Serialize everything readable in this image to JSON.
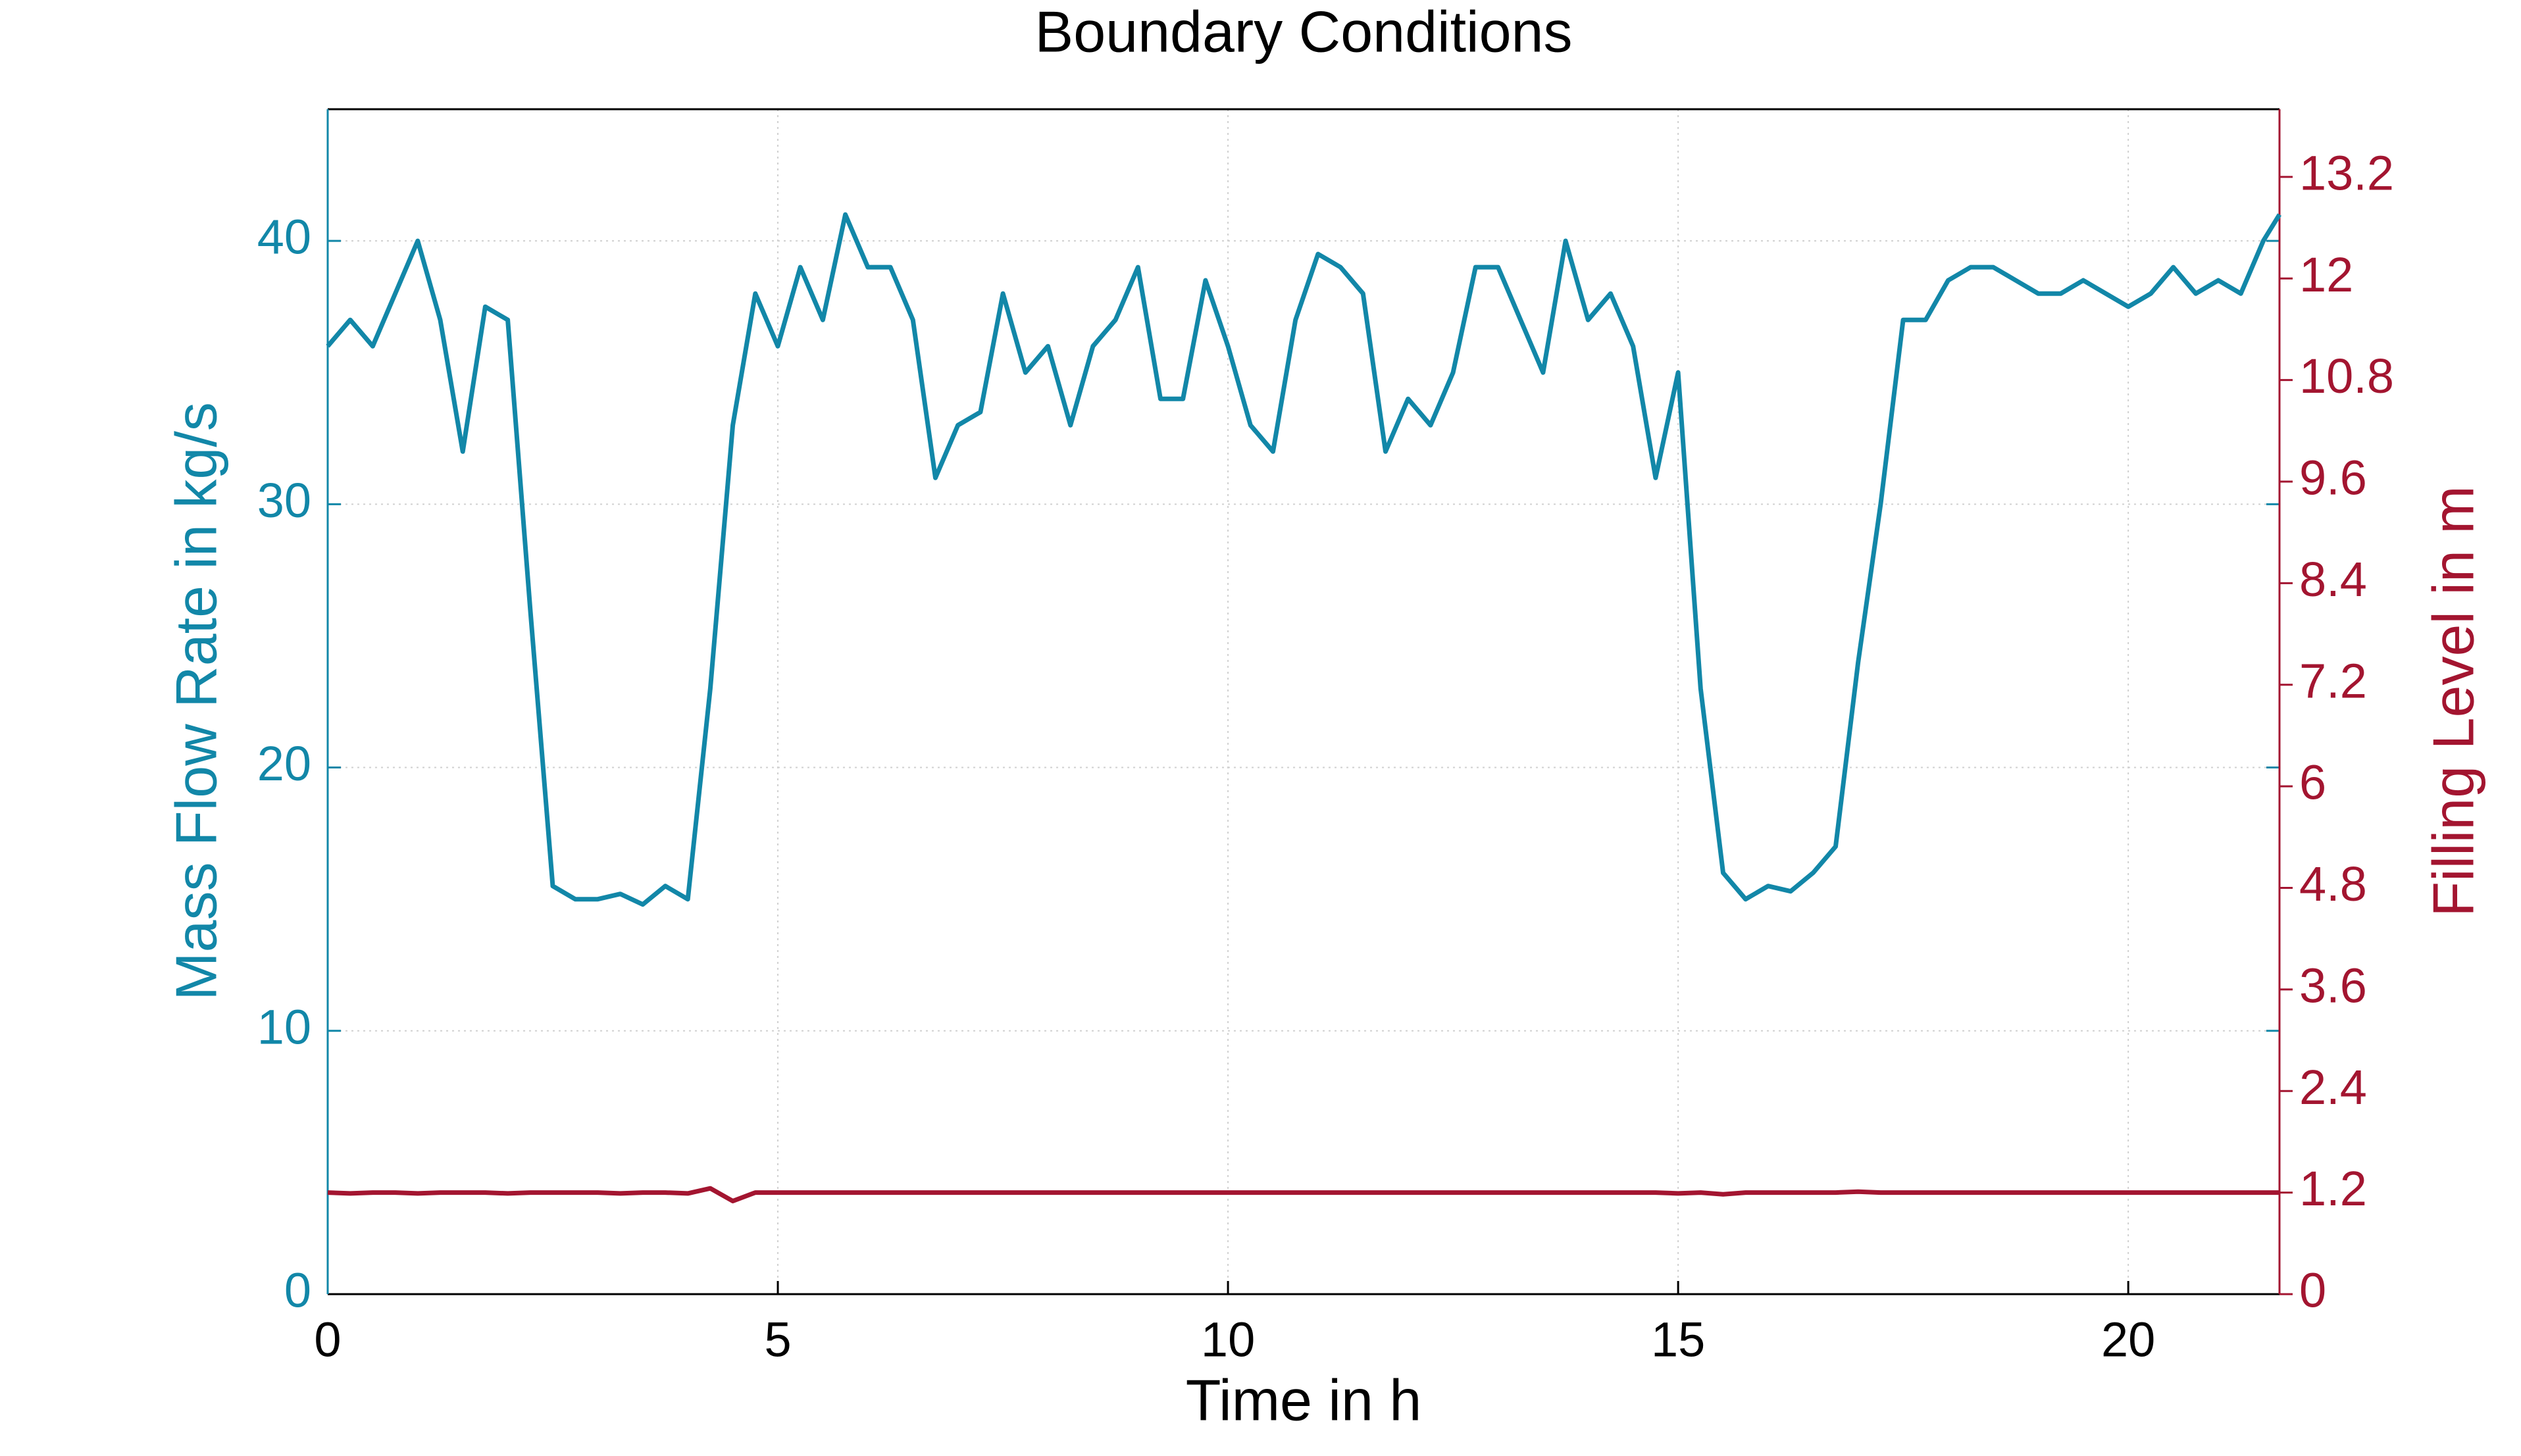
{
  "chart_data": {
    "type": "line",
    "title": "Boundary Conditions",
    "x_label": "Time in h",
    "y_label": "Mass Flow Rate in kg/s",
    "y2_label": "Filling Level in m",
    "x": [
      0,
      0.25,
      0.5,
      0.75,
      1,
      1.25,
      1.5,
      1.75,
      2,
      2.25,
      2.5,
      2.75,
      3,
      3.25,
      3.5,
      3.75,
      4,
      4.25,
      4.5,
      4.75,
      5,
      5.25,
      5.5,
      5.75,
      6,
      6.25,
      6.5,
      6.75,
      7,
      7.25,
      7.5,
      7.75,
      8,
      8.25,
      8.5,
      8.75,
      9,
      9.25,
      9.5,
      9.75,
      10,
      10.25,
      10.5,
      10.75,
      11,
      11.25,
      11.5,
      11.75,
      12,
      12.25,
      12.5,
      12.75,
      13,
      13.25,
      13.5,
      13.75,
      14,
      14.25,
      14.5,
      14.75,
      15,
      15.25,
      15.5,
      15.75,
      16,
      16.25,
      16.5,
      16.75,
      17,
      17.25,
      17.5,
      17.75,
      18,
      18.25,
      18.5,
      18.75,
      19,
      19.25,
      19.5,
      19.75,
      20,
      20.25,
      20.5,
      20.75,
      21,
      21.25,
      21.5,
      21.68
    ],
    "series": [
      {
        "name": "Mass Flow Rate",
        "color": "#1287a8",
        "axis": "y",
        "values": [
          36,
          37,
          36,
          38,
          40,
          37,
          32,
          37.5,
          37,
          26,
          15.5,
          15,
          15,
          15.2,
          14.8,
          15.5,
          15,
          23,
          33,
          38,
          36,
          39,
          37,
          41,
          39,
          39,
          37,
          31,
          33,
          33.5,
          38,
          35,
          36,
          33,
          36,
          37,
          39,
          34,
          34,
          38.5,
          36,
          33,
          32,
          37,
          39.5,
          39,
          38,
          32,
          34,
          33,
          35,
          39,
          39,
          37,
          35,
          40,
          37,
          38,
          36,
          31,
          35,
          23,
          16,
          15,
          15.5,
          15.3,
          16,
          17,
          24,
          30,
          37,
          37,
          38.5,
          39,
          39,
          38.5,
          38,
          38,
          38.5,
          38,
          37.5,
          38,
          39,
          38,
          38.5,
          38,
          40,
          41
        ]
      },
      {
        "name": "Filling Level",
        "color": "#a31530",
        "axis": "y2",
        "values": [
          1.2,
          1.19,
          1.2,
          1.2,
          1.19,
          1.2,
          1.2,
          1.2,
          1.19,
          1.2,
          1.2,
          1.2,
          1.2,
          1.19,
          1.2,
          1.2,
          1.19,
          1.25,
          1.1,
          1.2,
          1.2,
          1.2,
          1.2,
          1.2,
          1.2,
          1.2,
          1.2,
          1.2,
          1.2,
          1.2,
          1.2,
          1.2,
          1.2,
          1.2,
          1.2,
          1.2,
          1.2,
          1.2,
          1.2,
          1.2,
          1.2,
          1.2,
          1.2,
          1.2,
          1.2,
          1.2,
          1.2,
          1.2,
          1.2,
          1.2,
          1.2,
          1.2,
          1.2,
          1.2,
          1.2,
          1.2,
          1.2,
          1.2,
          1.2,
          1.2,
          1.19,
          1.2,
          1.18,
          1.2,
          1.2,
          1.2,
          1.2,
          1.2,
          1.21,
          1.2,
          1.2,
          1.2,
          1.2,
          1.2,
          1.2,
          1.2,
          1.2,
          1.2,
          1.2,
          1.2,
          1.2,
          1.2,
          1.2,
          1.2,
          1.2,
          1.2,
          1.2,
          1.2
        ]
      }
    ],
    "xlim": [
      0,
      21.68
    ],
    "xticks": [
      0,
      5,
      10,
      15,
      20
    ],
    "ylim": [
      0,
      45
    ],
    "yticks": [
      0,
      10,
      20,
      30,
      40
    ],
    "y2lim": [
      0,
      14
    ],
    "y2ticks": [
      0,
      1.2,
      2.4,
      3.6,
      4.8,
      6,
      7.2,
      8.4,
      9.6,
      10.8,
      12,
      13.2
    ],
    "grid": true
  }
}
